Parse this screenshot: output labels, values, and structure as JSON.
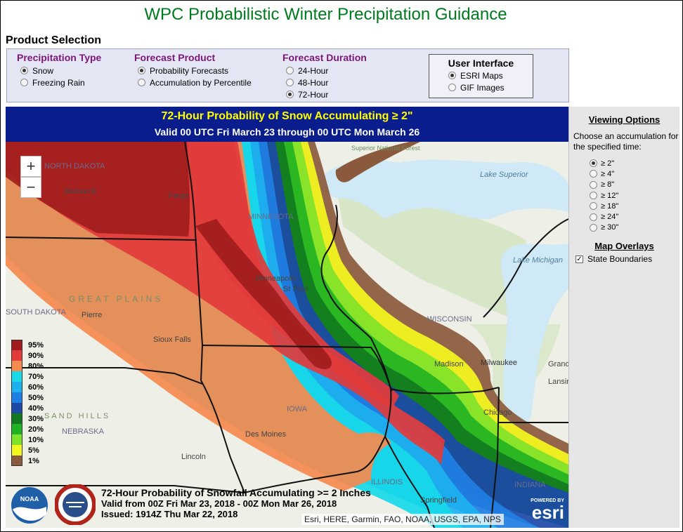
{
  "page": {
    "title": "WPC Probabilistic Winter Precipitation Guidance",
    "section_title": "Product Selection"
  },
  "selection": {
    "precip_type": {
      "heading": "Precipitation Type",
      "options": [
        {
          "label": "Snow",
          "selected": true
        },
        {
          "label": "Freezing Rain",
          "selected": false
        }
      ]
    },
    "forecast_product": {
      "heading": "Forecast Product",
      "options": [
        {
          "label": "Probability Forecasts",
          "selected": true
        },
        {
          "label": "Accumulation by Percentile",
          "selected": false
        }
      ]
    },
    "forecast_duration": {
      "heading": "Forecast Duration",
      "options": [
        {
          "label": "24-Hour",
          "selected": false
        },
        {
          "label": "48-Hour",
          "selected": false
        },
        {
          "label": "72-Hour",
          "selected": true
        }
      ]
    },
    "user_interface": {
      "heading": "User Interface",
      "options": [
        {
          "label": "ESRI Maps",
          "selected": true
        },
        {
          "label": "GIF Images",
          "selected": false
        }
      ]
    }
  },
  "map": {
    "title": "72-Hour Probability of Snow Accumulating ≥ 2\"",
    "valid": "Valid 00 UTC Fri March 23 through 00 UTC Mon March 26",
    "zoom_in": "+",
    "zoom_out": "−",
    "legend": [
      {
        "label": "95%",
        "color": "#a11d1d"
      },
      {
        "label": "90%",
        "color": "#e23b3b"
      },
      {
        "label": "80%",
        "color": "#f58a4e"
      },
      {
        "label": "70%",
        "color": "#17d9e8"
      },
      {
        "label": "60%",
        "color": "#1db1f0"
      },
      {
        "label": "50%",
        "color": "#1f7fe3"
      },
      {
        "label": "40%",
        "color": "#1c4aa8"
      },
      {
        "label": "30%",
        "color": "#117a1e"
      },
      {
        "label": "20%",
        "color": "#22b322"
      },
      {
        "label": "10%",
        "color": "#80e32a"
      },
      {
        "label": "5%",
        "color": "#f4f81e"
      },
      {
        "label": "1%",
        "color": "#8b5a3c"
      }
    ],
    "info": {
      "line1": "72-Hour Probability of Snowfall Accumulating >= 2 Inches",
      "line2": "Valid from 00Z Fri Mar 23, 2018 - 00Z Mon Mar 26, 2018",
      "line3": "Issued: 1914Z Thu Mar 22, 2018"
    },
    "attribution": "Esri, HERE, Garmin, FAO, NOAA, USGS, EPA, NPS",
    "esri_powered": "POWERED BY",
    "esri_name": "esri",
    "noaa_label": "NOAA",
    "place_labels": [
      {
        "text": "NORTH DAKOTA",
        "cls": "state"
      },
      {
        "text": "Bismarck",
        "cls": "city"
      },
      {
        "text": "Fargo",
        "cls": "city"
      },
      {
        "text": "MINNESOTA",
        "cls": "state"
      },
      {
        "text": "Minneapolis",
        "cls": "city"
      },
      {
        "text": "St Paul",
        "cls": "city"
      },
      {
        "text": "SOUTH DAKOTA",
        "cls": "state"
      },
      {
        "text": "Pierre",
        "cls": "city"
      },
      {
        "text": "GREAT PLAINS",
        "cls": "region"
      },
      {
        "text": "Sioux Falls",
        "cls": "city"
      },
      {
        "text": "NEBRASKA",
        "cls": "state"
      },
      {
        "text": "SAND HILLS",
        "cls": "region"
      },
      {
        "text": "Lincoln",
        "cls": "city"
      },
      {
        "text": "Des Moines",
        "cls": "city"
      },
      {
        "text": "IOWA",
        "cls": "state"
      },
      {
        "text": "WISCONSIN",
        "cls": "state"
      },
      {
        "text": "Madison",
        "cls": "city"
      },
      {
        "text": "Milwaukee",
        "cls": "city"
      },
      {
        "text": "Chicago",
        "cls": "city"
      },
      {
        "text": "ILLINOIS",
        "cls": "state"
      },
      {
        "text": "Springfield",
        "cls": "city"
      },
      {
        "text": "INDIANA",
        "cls": "state"
      },
      {
        "text": "Lake Superior",
        "cls": "water"
      },
      {
        "text": "Lake Michigan",
        "cls": "water"
      },
      {
        "text": "Superior National Forest",
        "cls": "park"
      },
      {
        "text": "Grand Rapids",
        "cls": "city"
      },
      {
        "text": "Lansing",
        "cls": "city"
      }
    ]
  },
  "side_panel": {
    "viewing_title": "Viewing Options",
    "viewing_desc": "Choose an accumulation for the specified time:",
    "thresholds": [
      {
        "label": "≥ 2\"",
        "selected": true
      },
      {
        "label": "≥ 4\"",
        "selected": false
      },
      {
        "label": "≥ 8\"",
        "selected": false
      },
      {
        "label": "≥ 12\"",
        "selected": false
      },
      {
        "label": "≥ 18\"",
        "selected": false
      },
      {
        "label": "≥ 24\"",
        "selected": false
      },
      {
        "label": "≥ 30\"",
        "selected": false
      }
    ],
    "overlays_title": "Map Overlays",
    "overlays": [
      {
        "label": "State Boundaries",
        "checked": true
      }
    ]
  },
  "colors": {
    "title_green": "#007a1f",
    "heading_purple": "#7c1678",
    "header_navy": "#0a1d8c",
    "header_yellow": "#ffff00",
    "land": "#eef0e8",
    "water": "#cfeaf6"
  }
}
